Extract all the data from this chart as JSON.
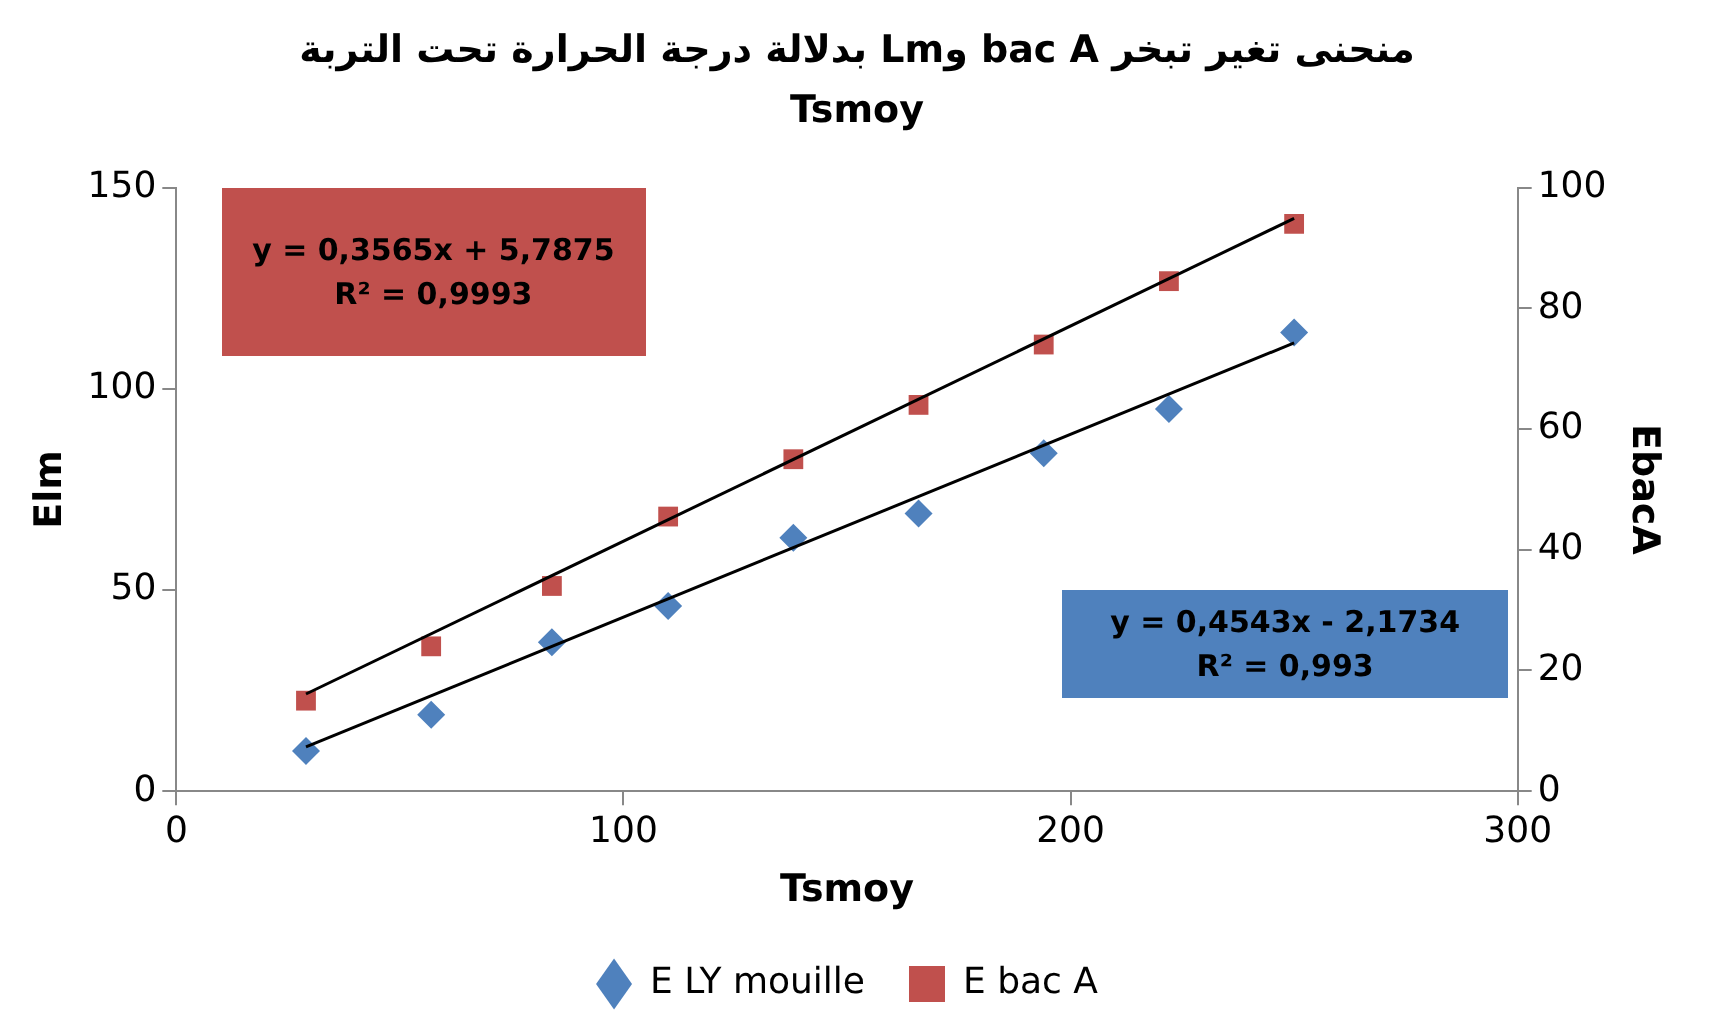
{
  "chart_data": {
    "type": "scatter",
    "title": "منحنى تغير تبخر bac A وLm  بدلالة درجة الحرارة تحت التربة Tsmoy",
    "xlabel": "Tsmoy",
    "ylabel": "Elm",
    "y2label": "EbacA",
    "x": [
      29,
      57,
      84,
      110,
      138,
      166,
      194,
      222,
      250
    ],
    "series": [
      {
        "name": "E LY mouille",
        "color": "#4f81bd",
        "marker": "diamond",
        "values": [
          10,
          19,
          37,
          46,
          63,
          69,
          84,
          95,
          114
        ]
      },
      {
        "name": "E bac A",
        "color": "#c0504d",
        "marker": "square",
        "axis": "y2",
        "values": [
          15,
          24,
          34,
          45.5,
          55,
          64,
          74,
          84.5,
          94
        ]
      },
      {
        "type": "line",
        "color": "#000000",
        "marker": "none",
        "values": [
          11,
          null,
          null,
          null,
          null,
          null,
          null,
          null,
          111.4
        ]
      },
      {
        "type": "line",
        "color": "#000000",
        "marker": "none",
        "axis": "y2",
        "values": [
          16.1,
          null,
          null,
          null,
          null,
          null,
          null,
          null,
          94.9
        ]
      }
    ],
    "xlim": [
      0,
      300
    ],
    "xticks": [
      0,
      100,
      200,
      300
    ],
    "ylim": [
      0,
      150
    ],
    "yticks": [
      0,
      50,
      100,
      150
    ],
    "y2lim": [
      0,
      100
    ],
    "y2ticks": [
      0,
      20,
      40,
      60,
      80,
      100
    ],
    "annotations": [
      "y = 0,3565x + 5,7875\nR² = 0,9993",
      "y = 0,4543x - 2,1734\nR² = 0,993"
    ],
    "grid": false,
    "legend": "bottom"
  }
}
